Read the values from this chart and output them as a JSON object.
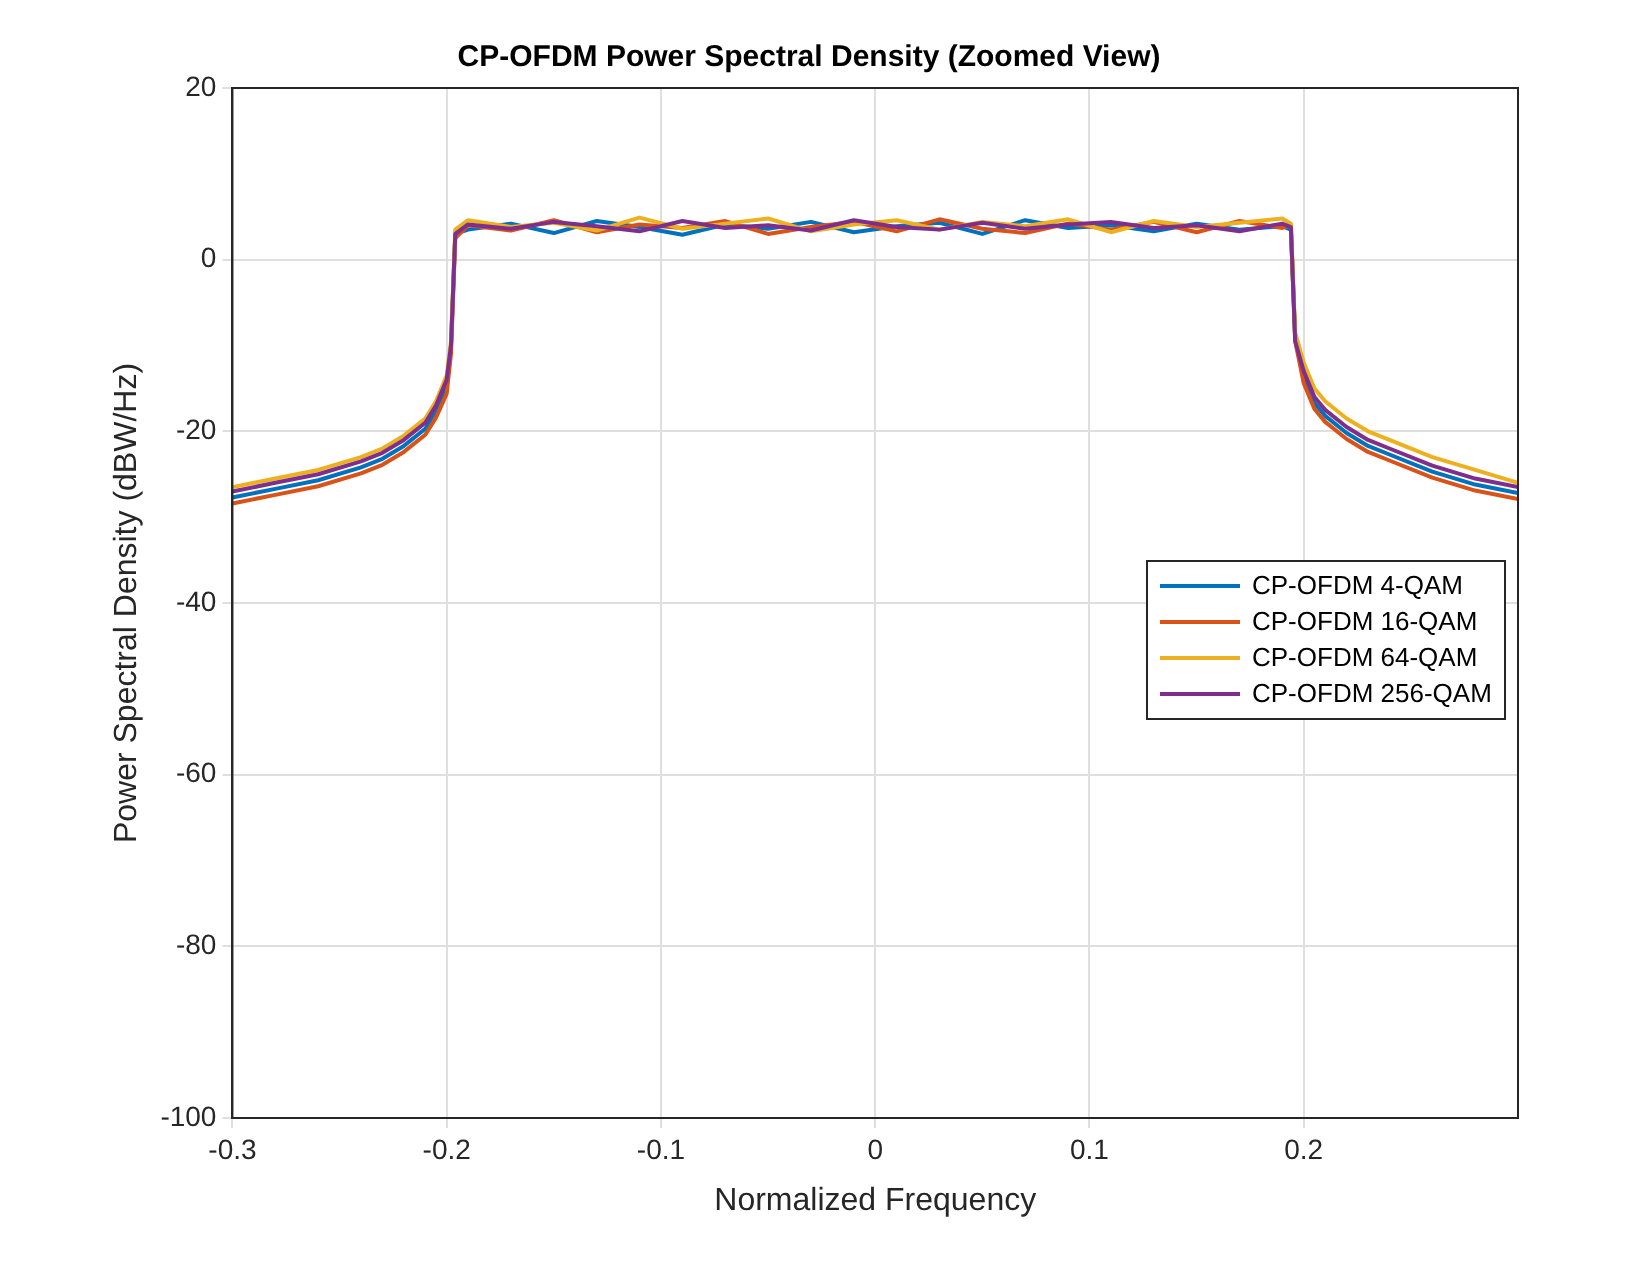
{
  "chart_data": {
    "type": "line",
    "title": "CP-OFDM Power Spectral Density (Zoomed View)",
    "xlabel": "Normalized Frequency",
    "ylabel": "Power Spectral Density (dBW/Hz)",
    "x": [
      -0.3,
      -0.28,
      -0.26,
      -0.24,
      -0.23,
      -0.22,
      -0.21,
      -0.205,
      -0.2,
      -0.198,
      -0.196,
      -0.19,
      -0.17,
      -0.15,
      -0.13,
      -0.11,
      -0.09,
      -0.07,
      -0.05,
      -0.03,
      -0.01,
      0.01,
      0.03,
      0.05,
      0.07,
      0.09,
      0.11,
      0.13,
      0.15,
      0.17,
      0.19,
      0.194,
      0.196,
      0.2,
      0.205,
      0.21,
      0.22,
      0.23,
      0.24,
      0.26,
      0.28,
      0.3
    ],
    "series": [
      {
        "name": "CP-OFDM 4-QAM",
        "color": "#0072bd",
        "values": [
          -27.7,
          -26.7,
          -25.7,
          -24.2,
          -23.2,
          -21.7,
          -19.7,
          -17.7,
          -14.7,
          -10,
          3,
          3.5,
          4.2,
          3.1,
          4.5,
          3.8,
          2.9,
          4.1,
          3.6,
          4.4,
          3.2,
          3.9,
          4.3,
          3,
          4.6,
          3.7,
          4,
          3.3,
          4.2,
          3.5,
          3.9,
          3.5,
          -9,
          -13.7,
          -16.7,
          -18.2,
          -20.2,
          -21.7,
          -22.7,
          -24.7,
          -26.2,
          -27.2
        ]
      },
      {
        "name": "CP-OFDM 16-QAM",
        "color": "#d95319",
        "values": [
          -28.4,
          -27.4,
          -26.4,
          -24.9,
          -23.9,
          -22.4,
          -20.4,
          -18.4,
          -15.6,
          -11,
          2.5,
          4,
          3.4,
          4.6,
          3.2,
          4.1,
          3.7,
          4.5,
          3,
          3.8,
          4.4,
          3.3,
          4.7,
          3.6,
          3.1,
          4.2,
          3.5,
          4.4,
          3.2,
          4.5,
          3.7,
          4,
          -9.5,
          -14.4,
          -17.4,
          -18.9,
          -20.9,
          -22.4,
          -23.4,
          -25.4,
          -26.9,
          -27.9
        ]
      },
      {
        "name": "CP-OFDM 64-QAM",
        "color": "#edb120",
        "values": [
          -26.5,
          -25.5,
          -24.5,
          -23,
          -22,
          -20.5,
          -18.5,
          -16.5,
          -13.5,
          -9.5,
          3.5,
          4.6,
          3.8,
          4.3,
          3.4,
          4.9,
          3.6,
          4.2,
          4.8,
          3.3,
          4.1,
          4.6,
          3.5,
          4.4,
          3.9,
          4.7,
          3.2,
          4.5,
          3.8,
          4.3,
          4.8,
          4.2,
          -8.5,
          -12,
          -15,
          -16.5,
          -18.5,
          -20,
          -21,
          -23,
          -24.5,
          -26
        ]
      },
      {
        "name": "CP-OFDM 256-QAM",
        "color": "#7e2f8e",
        "values": [
          -27,
          -26,
          -25,
          -23.5,
          -22.5,
          -21,
          -19,
          -17,
          -14,
          -10,
          3,
          4.1,
          3.6,
          4.4,
          3.9,
          3.3,
          4.5,
          3.7,
          4,
          3.4,
          4.6,
          3.8,
          3.5,
          4.3,
          3.6,
          4.1,
          4.4,
          3.7,
          4,
          3.3,
          4.2,
          3.8,
          -9.5,
          -13,
          -16,
          -17.5,
          -19.5,
          -21,
          -22,
          -24,
          -25.5,
          -26.5
        ]
      }
    ],
    "xlim": [
      -0.3,
      0.3
    ],
    "xticks": [
      -0.3,
      -0.2,
      -0.1,
      0,
      0.1,
      0.2
    ],
    "ylim": [
      -100,
      20
    ],
    "yticks": [
      -100,
      -80,
      -60,
      -40,
      -20,
      0,
      20
    ],
    "grid": true,
    "legend": "right",
    "marker": "none",
    "line_style": "solid"
  }
}
